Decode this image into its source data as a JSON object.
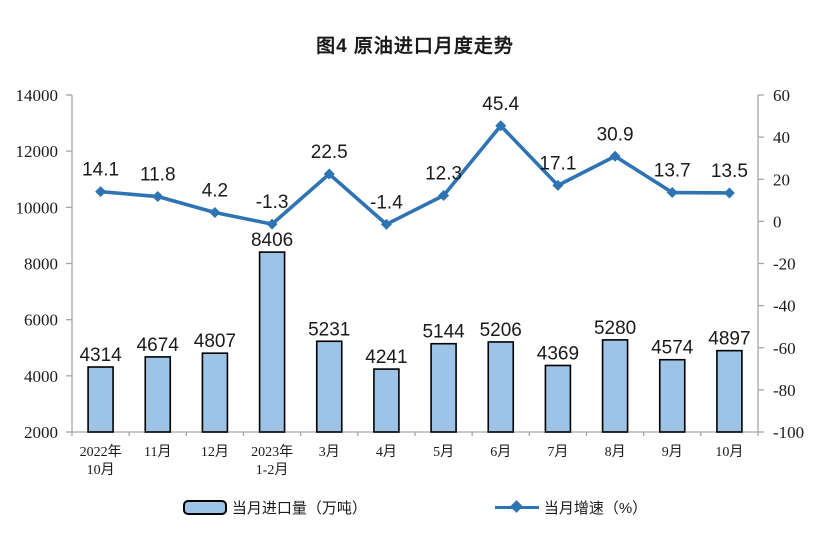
{
  "title": "图4 原油进口月度走势",
  "legend": {
    "bar_label": "当月进口量（万吨）",
    "line_label": "当月增速（%）"
  },
  "colors": {
    "axis": "#a6a6a6",
    "text": "#1a1a1a",
    "bar_fill": "#9DC3E6",
    "bar_stroke": "#000000",
    "line": "#2E74B5"
  },
  "chart_data": {
    "type": "combo",
    "title": "图4 原油进口月度走势",
    "categories": [
      [
        "2022年",
        "10月"
      ],
      [
        "11月"
      ],
      [
        "12月"
      ],
      [
        "2023年",
        "1-2月"
      ],
      [
        "3月"
      ],
      [
        "4月"
      ],
      [
        "5月"
      ],
      [
        "6月"
      ],
      [
        "7月"
      ],
      [
        "8月"
      ],
      [
        "9月"
      ],
      [
        "10月"
      ]
    ],
    "series": [
      {
        "name": "当月进口量（万吨）",
        "type": "bar",
        "yaxis": "left",
        "values": [
          4314,
          4674,
          4807,
          8406,
          5231,
          4241,
          5144,
          5206,
          4369,
          5280,
          4574,
          4897
        ],
        "fill": "#9DC3E6",
        "stroke": "#000000"
      },
      {
        "name": "当月增速（%）",
        "type": "line",
        "yaxis": "right",
        "values": [
          14.1,
          11.8,
          4.2,
          -1.3,
          22.5,
          -1.4,
          12.3,
          45.4,
          17.1,
          30.9,
          13.7,
          13.5
        ],
        "color": "#2E74B5",
        "marker": "diamond"
      }
    ],
    "axes": {
      "left": {
        "min": 2000,
        "max": 14000,
        "step": 2000
      },
      "right": {
        "min": -100,
        "max": 60,
        "step": 20
      }
    },
    "grid": false,
    "legend_position": "bottom",
    "data_labels": true
  }
}
